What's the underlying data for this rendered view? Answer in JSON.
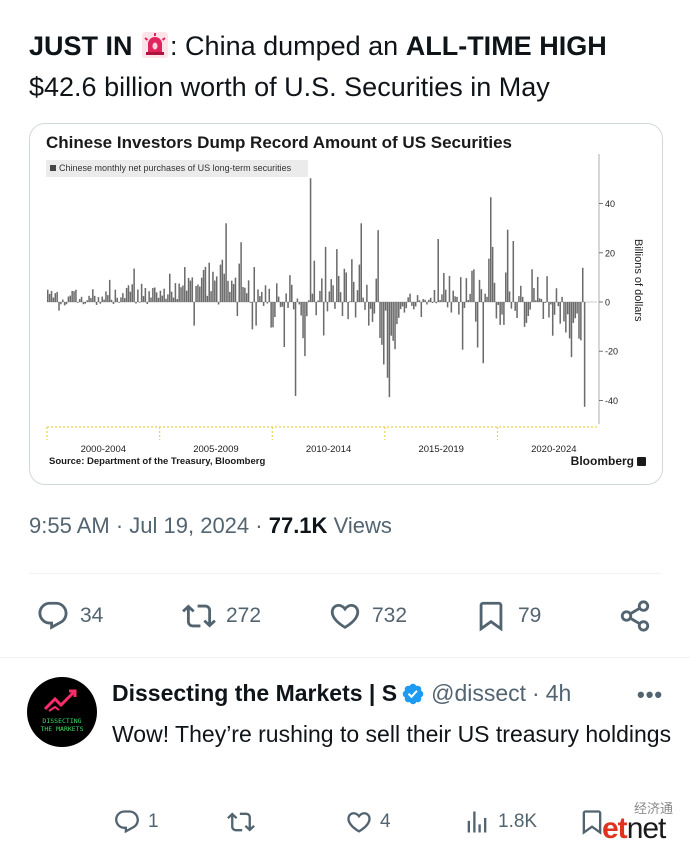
{
  "tweet": {
    "line1_prefix": "JUST IN",
    "line1_middle": ": China dumped an",
    "line1_bold": "ALL-TIME HIGH",
    "line2": "$42.6 billion worth of U.S. Securities in May",
    "emoji": "rotating-light-icon"
  },
  "chart_data": {
    "type": "bar",
    "title": "Chinese Investors Dump Record Amount of US Securities",
    "legend": "Chinese monthly net purchases of US long-term securities",
    "ylabel": "Billions of dollars",
    "ylim": [
      -53,
      53
    ],
    "yticks": [
      "40",
      "20",
      "0",
      "-20",
      "-40"
    ],
    "yticks_values": [
      40,
      20,
      0,
      -20,
      -40
    ],
    "xtick_labels": [
      "2000-2004",
      "2005-2009",
      "2010-2014",
      "2015-2019",
      "2020-2024"
    ],
    "source": "Source: Department of the Treasury, Bloomberg",
    "brand": "Bloomberg",
    "series": [
      {
        "name": "Chinese monthly net purchases of US long-term securities",
        "color": "#6b6b6b",
        "start": "2000-01",
        "end": "2024-05",
        "values": [
          5.0,
          3.3,
          4.5,
          1.8,
          3.6,
          4.1,
          -3.5,
          -0.9,
          1.0,
          -1.4,
          -0.9,
          2.2,
          2.6,
          4.5,
          4.4,
          5.0,
          -0.3,
          1.2,
          2.1,
          -0.9,
          -0.7,
          0.7,
          2.5,
          1.6,
          5.2,
          2.5,
          -1.2,
          2.0,
          -0.7,
          2.2,
          1.0,
          4.3,
          2.8,
          9.0,
          0.9,
          -0.8,
          5.0,
          1.7,
          -0.3,
          1.9,
          3.6,
          1.6,
          5.7,
          6.8,
          4.2,
          7.2,
          13.6,
          -0.6,
          5.1,
          -0.1,
          7.4,
          2.4,
          5.7,
          -0.8,
          4.4,
          1.8,
          5.7,
          5.9,
          3.9,
          1.7,
          4.6,
          2.6,
          5.4,
          1.3,
          3.1,
          11.5,
          4.2,
          1.8,
          7.7,
          1.2,
          7.5,
          6.0,
          6.7,
          14.2,
          4.6,
          9.8,
          8.7,
          10.0,
          -9.6,
          6.5,
          7.1,
          6.3,
          9.9,
          13.0,
          14.3,
          2.5,
          16.0,
          4.4,
          12.3,
          8.7,
          10.4,
          -1.0,
          15.2,
          17.2,
          11.5,
          32.0,
          8.6,
          4.1,
          8.7,
          7.3,
          9.9,
          -5.7,
          15.6,
          24.3,
          6.1,
          5.8,
          3.6,
          8.8,
          -0.3,
          -11.1,
          14.2,
          -9.6,
          5.1,
          2.4,
          4.1,
          -1.6,
          6.8,
          -0.6,
          5.4,
          -10.4,
          -10.3,
          -6.1,
          7.6,
          2.2,
          -2.1,
          -1.9,
          -18.3,
          3.5,
          -2.4,
          10.9,
          7.0,
          -3.0,
          -38.2,
          1.4,
          -1.0,
          -5.5,
          -14.7,
          -22.0,
          -5.8,
          0.7,
          50.3,
          3.4,
          16.8,
          -5.4,
          0.6,
          4.5,
          9.6,
          -13.6,
          22.4,
          -3.8,
          4.3,
          9.3,
          6.8,
          -2.8,
          21.5,
          10.6,
          4.0,
          -5.7,
          13.5,
          12.0,
          -7.0,
          0.3,
          17.4,
          8.2,
          -6.3,
          4.8,
          15.2,
          32.0,
          1.8,
          -3.2,
          7.0,
          -9.6,
          -2.8,
          -8.1,
          -4.7,
          9.5,
          29.2,
          -14.6,
          -17.4,
          -25.4,
          -3.5,
          -30.8,
          -38.7,
          -13.7,
          -15.8,
          -19.2,
          -9.0,
          -6.4,
          -2.9,
          -1.8,
          -4.3,
          -2.5,
          1.9,
          3.4,
          -1.6,
          -3.0,
          -1.8,
          2.8,
          0.7,
          -6.1,
          1.2,
          0.9,
          -1.0,
          0.9,
          1.7,
          -0.4,
          4.9,
          -0.5,
          25.6,
          0.8,
          3.1,
          11.8,
          5.0,
          -2.2,
          10.6,
          -4.3,
          4.6,
          2.3,
          2.1,
          -5.1,
          10.1,
          -19.4,
          -2.4,
          9.7,
          0.8,
          3.3,
          12.7,
          13.3,
          -8.0,
          -18.5,
          9.0,
          5.2,
          -24.9,
          3.4,
          2.1,
          17.6,
          42.6,
          22.4,
          7.8,
          -6.7,
          -1.2,
          -9.3,
          -5.1,
          -9.3,
          12.0,
          29.4,
          4.3,
          -2.7,
          24.8,
          -3.6,
          -6.5,
          2.4,
          6.6,
          2.1,
          -10.1,
          -8.5,
          -5.7,
          -3.1,
          13.3,
          5.7,
          0.7,
          10.2,
          1.5,
          1.2,
          -6.9,
          -0.4,
          10.5,
          -6.3,
          -1.0,
          -13.7,
          -5.2,
          5.6,
          -1.7,
          -8.8,
          2.1,
          -7.9,
          -12.4,
          -5.0,
          -14.8,
          -22.4,
          -8.5,
          -6.6,
          -4.7,
          -14.9,
          -15.6,
          13.9,
          -42.6
        ]
      }
    ]
  },
  "meta": {
    "time": "9:55 AM",
    "date": "Jul 19, 2024",
    "views_count": "77.1K",
    "views_label": "Views"
  },
  "actions": {
    "replies": "34",
    "retweets": "272",
    "likes": "732",
    "bookmarks": "79"
  },
  "reply": {
    "avatar_text_1": "DISSECTING",
    "avatar_text_2": "THE MARKETS",
    "name": "Dissecting the Markets | S",
    "handle": "@dissect",
    "time": "4h",
    "text": "Wow! They’re rushing to sell their US treasury holdings",
    "replies": "1",
    "likes": "4",
    "views": "1.8K"
  },
  "watermark": {
    "cn": "经济通",
    "et": "et",
    "net": "net"
  },
  "colors": {
    "text": "#0f1419",
    "secondary": "#536471",
    "verified": "#1d9bf0",
    "bar": "#6b6b6b",
    "siren": "#e0245e",
    "avatar_accent": "#3ddc6a",
    "watermark_red": "#e0331f"
  }
}
